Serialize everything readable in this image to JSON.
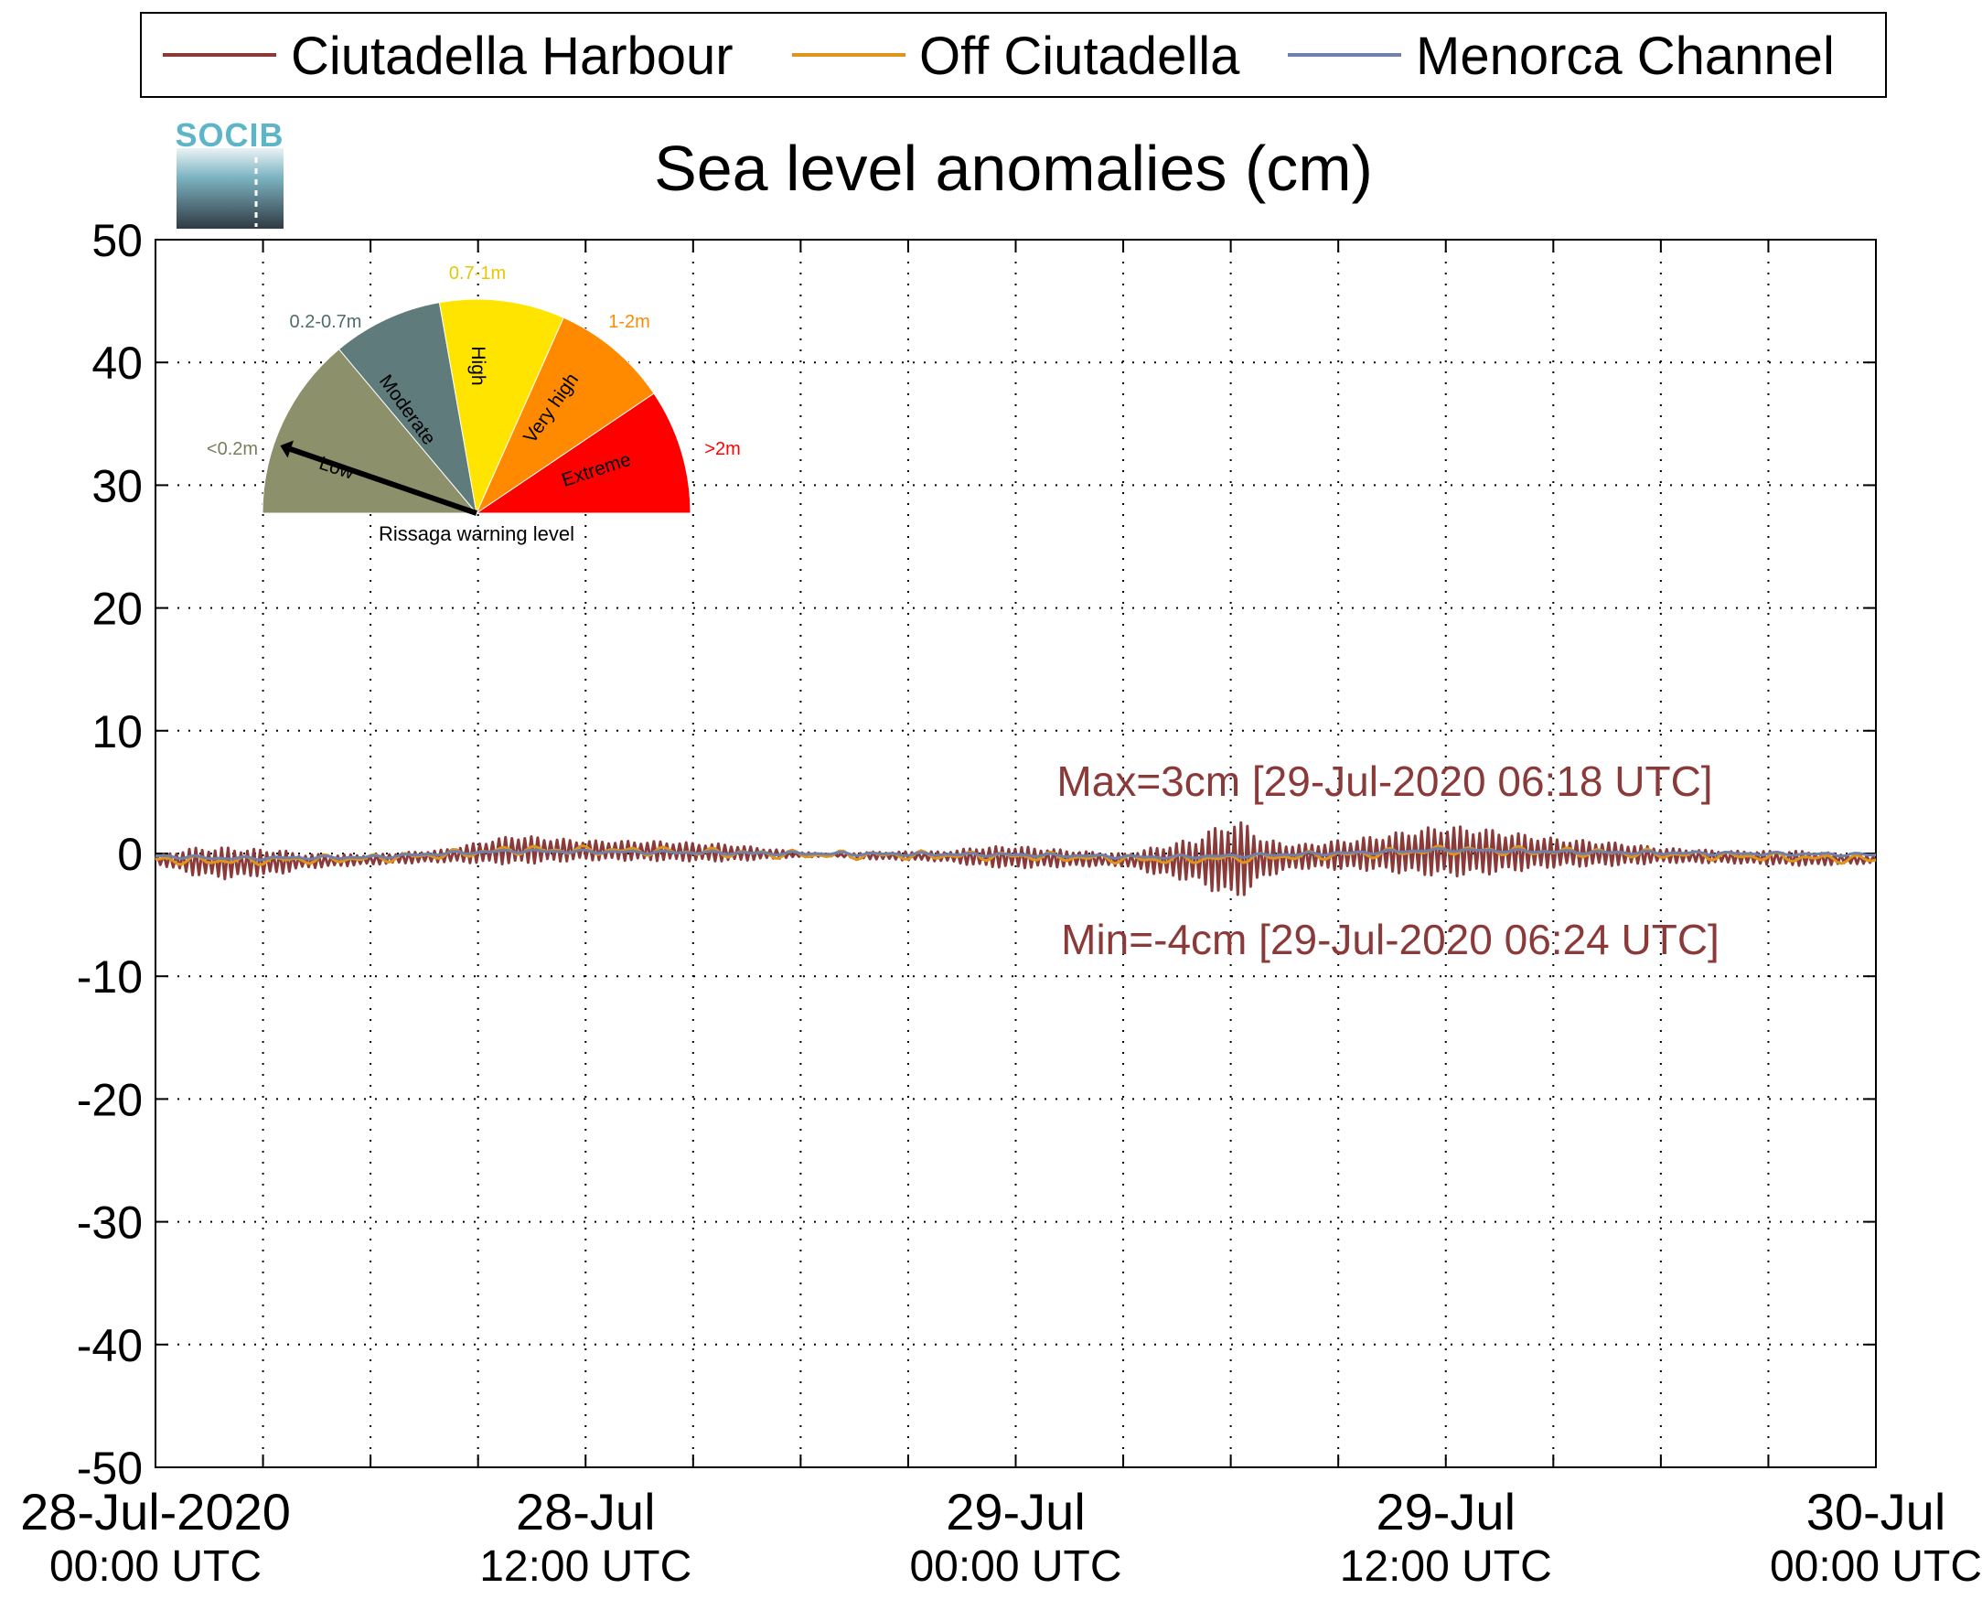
{
  "chart_data": {
    "type": "line",
    "title": "Sea level anomalies (cm)",
    "xlabel": "",
    "ylabel": "",
    "ylim": [
      -50,
      50
    ],
    "yticks": [
      -50,
      -40,
      -30,
      -20,
      -10,
      0,
      10,
      20,
      30,
      40,
      50
    ],
    "xlim_hours": [
      0,
      48
    ],
    "x_unit": "hours since 28-Jul-2020 00:00 UTC",
    "x_tick_labels": [
      {
        "hour": 0,
        "line1": "28-Jul-2020",
        "line2": "00:00 UTC"
      },
      {
        "hour": 12,
        "line1": "28-Jul",
        "line2": "12:00 UTC"
      },
      {
        "hour": 24,
        "line1": "29-Jul",
        "line2": "00:00 UTC"
      },
      {
        "hour": 36,
        "line1": "29-Jul",
        "line2": "12:00 UTC"
      },
      {
        "hour": 48,
        "line1": "30-Jul",
        "line2": "00:00 UTC"
      }
    ],
    "grid": true,
    "legend_position": "top",
    "series": [
      {
        "name": "Ciutadella Harbour",
        "color": "#8b3a3a",
        "envelope_hours": [
          0,
          1,
          2,
          2.8,
          3.5,
          4,
          6,
          8,
          10,
          11,
          12,
          14,
          16,
          18,
          19,
          20,
          22,
          23,
          24,
          26,
          27,
          28,
          29,
          30,
          30.5,
          31,
          31.5,
          32,
          33,
          34,
          35,
          36,
          37,
          39,
          41,
          42,
          44,
          46,
          48
        ],
        "envelope_amp": [
          0.3,
          1.1,
          1.3,
          1.1,
          1.0,
          0.6,
          0.4,
          0.5,
          1.2,
          1.0,
          0.8,
          0.8,
          0.7,
          0.2,
          0.1,
          0.3,
          0.4,
          0.8,
          0.9,
          0.6,
          0.5,
          1.2,
          1.8,
          3.3,
          2.8,
          1.5,
          1.2,
          1.0,
          1.2,
          1.4,
          1.8,
          2.1,
          1.9,
          1.2,
          0.9,
          0.6,
          0.5,
          0.6,
          0.3
        ],
        "baseline_hours": [
          0,
          2,
          6,
          8,
          10,
          14,
          18,
          24,
          28,
          30,
          34,
          36,
          40,
          44,
          48
        ],
        "baseline_cm": [
          -0.5,
          -0.8,
          -0.5,
          -0.2,
          0.3,
          0.2,
          -0.1,
          -0.3,
          -0.6,
          -0.5,
          0.0,
          0.2,
          0.0,
          -0.3,
          -0.5
        ],
        "max_label": "Max=3cm [29-Jul-2020 06:18 UTC]",
        "min_label": "Min=-4cm [29-Jul-2020 06:24 UTC]"
      },
      {
        "name": "Off Ciutadella",
        "color": "#e0941c",
        "baseline_hours": [
          0,
          2,
          6,
          8,
          10,
          14,
          18,
          24,
          28,
          30,
          34,
          36,
          40,
          44,
          48
        ],
        "baseline_cm": [
          -0.5,
          -0.6,
          -0.4,
          -0.1,
          0.3,
          0.2,
          -0.1,
          -0.2,
          -0.5,
          -0.4,
          0.0,
          0.3,
          0.1,
          -0.2,
          -0.5
        ],
        "wiggle_amp": 0.4
      },
      {
        "name": "Menorca Channel",
        "color": "#7080a8",
        "baseline_hours": [
          0,
          2,
          6,
          8,
          10,
          14,
          18,
          24,
          28,
          30,
          34,
          36,
          40,
          44,
          48
        ],
        "baseline_cm": [
          -0.2,
          -0.4,
          -0.3,
          0.0,
          0.2,
          0.1,
          0.0,
          -0.1,
          -0.3,
          -0.2,
          0.1,
          0.3,
          0.1,
          0.0,
          -0.1
        ],
        "wiggle_amp": 0.15
      }
    ]
  },
  "logo": {
    "text": "SOCIB"
  },
  "gauge": {
    "caption": "Rissaga warning level",
    "needle_level": "Low",
    "sectors": [
      {
        "name": "Low",
        "range_label": "<0.2m",
        "color": "#8c916c",
        "label_color": "#7a7d5c"
      },
      {
        "name": "Moderate",
        "range_label": "0.2-0.7m",
        "color": "#5f7b7b",
        "label_color": "#4f6b6b"
      },
      {
        "name": "High",
        "range_label": "0.7-1m",
        "color": "#ffe400",
        "label_color": "#e6c800"
      },
      {
        "name": "Very high",
        "range_label": "1-2m",
        "color": "#ff8a00",
        "label_color": "#ff8a00"
      },
      {
        "name": "Extreme",
        "range_label": ">2m",
        "color": "#ff0000",
        "label_color": "#ff0000"
      }
    ]
  }
}
